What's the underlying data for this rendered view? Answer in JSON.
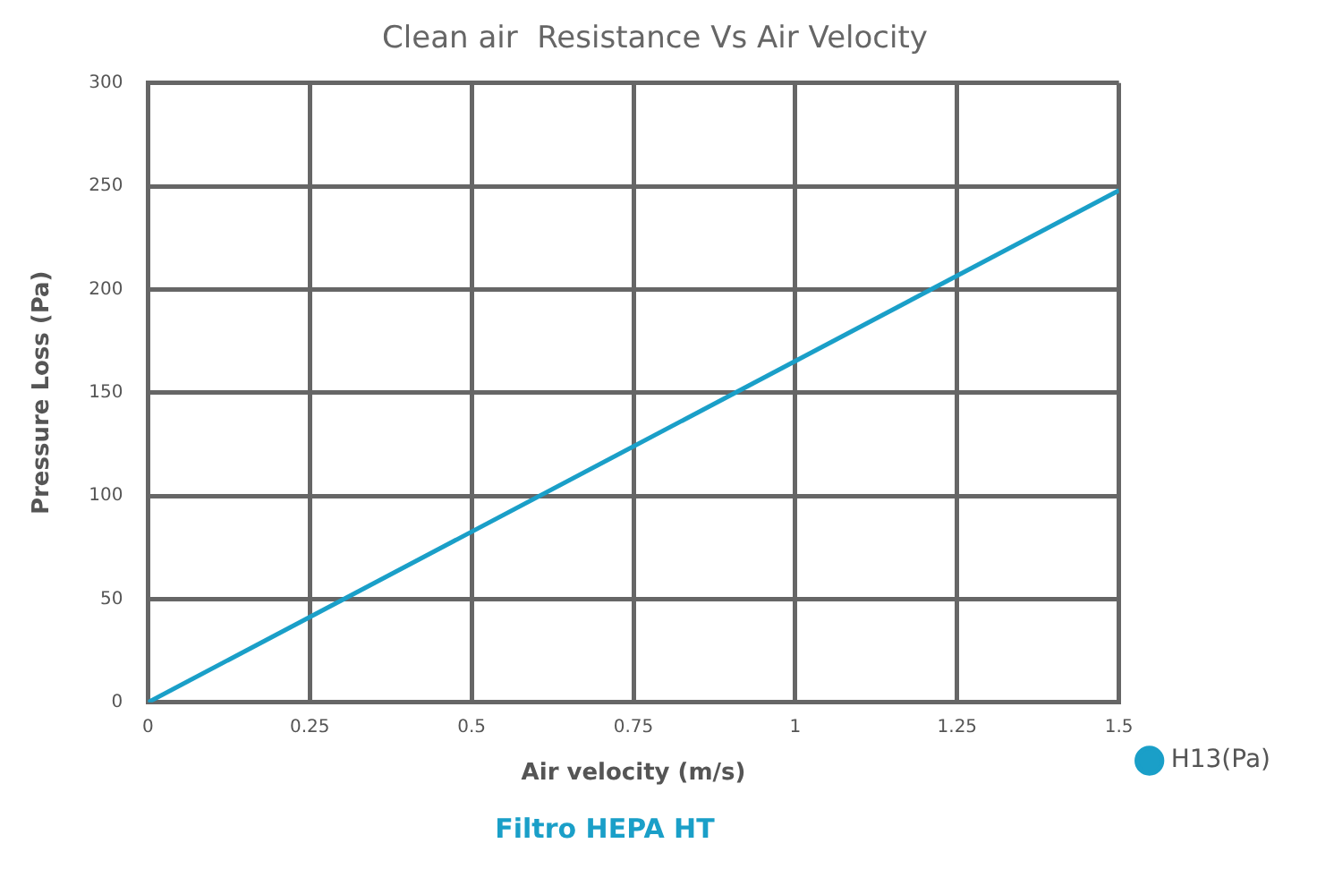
{
  "chart_data": {
    "type": "line",
    "title": "Clean air  Resistance Vs Air Velocity",
    "xlabel": "Air velocity (m/s)",
    "ylabel": "Pressure Loss (Pa)",
    "annotations": [
      "Filtro HEPA HT"
    ],
    "series": [
      {
        "name": "H13(Pa)",
        "color": "#1a9fc8",
        "x": [
          0,
          1.5
        ],
        "values": [
          0,
          248
        ]
      }
    ],
    "xlim": [
      0,
      1.5
    ],
    "xticks": [
      0,
      0.25,
      0.5,
      0.75,
      1,
      1.25,
      1.5
    ],
    "ylim": [
      0,
      300
    ],
    "yticks": [
      0,
      50,
      100,
      150,
      200,
      250,
      300
    ],
    "grid": true,
    "legend": "right",
    "marker": "none",
    "line_style": "solid"
  }
}
